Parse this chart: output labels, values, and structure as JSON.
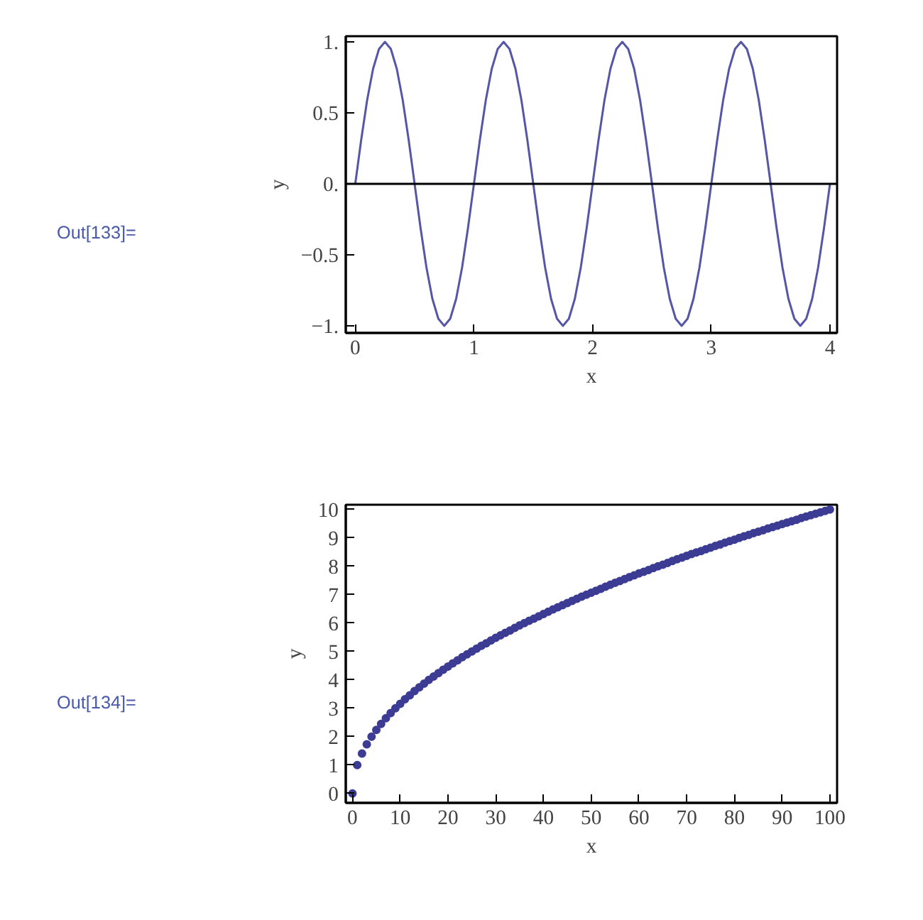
{
  "chart_data": [
    {
      "type": "line",
      "xlabel": "x",
      "ylabel": "y",
      "annotations": [
        "Out[133]="
      ],
      "x": [
        0,
        0.05,
        0.1,
        0.15,
        0.2,
        0.25,
        0.3,
        0.35,
        0.4,
        0.45,
        0.5,
        0.55,
        0.6,
        0.65,
        0.7,
        0.75,
        0.8,
        0.85,
        0.9,
        0.95,
        1,
        1.05,
        1.1,
        1.15,
        1.2,
        1.25,
        1.3,
        1.35,
        1.4,
        1.45,
        1.5,
        1.55,
        1.6,
        1.65,
        1.7,
        1.75,
        1.8,
        1.85,
        1.9,
        1.95,
        2,
        2.05,
        2.1,
        2.15,
        2.2,
        2.25,
        2.3,
        2.35,
        2.4,
        2.45,
        2.5,
        2.55,
        2.6,
        2.65,
        2.7,
        2.75,
        2.8,
        2.85,
        2.9,
        2.95,
        3,
        3.05,
        3.1,
        3.15,
        3.2,
        3.25,
        3.3,
        3.35,
        3.4,
        3.45,
        3.5,
        3.55,
        3.6,
        3.65,
        3.7,
        3.75,
        3.8,
        3.85,
        3.9,
        3.95,
        4
      ],
      "series": [
        {
          "color": "#5656a6",
          "values": [
            0,
            0.31,
            0.59,
            0.81,
            0.95,
            1,
            0.95,
            0.81,
            0.59,
            0.31,
            0,
            -0.31,
            -0.59,
            -0.81,
            -0.95,
            -1,
            -0.95,
            -0.81,
            -0.59,
            -0.31,
            0,
            0.31,
            0.59,
            0.81,
            0.95,
            1,
            0.95,
            0.81,
            0.59,
            0.31,
            0,
            -0.31,
            -0.59,
            -0.81,
            -0.95,
            -1,
            -0.95,
            -0.81,
            -0.59,
            -0.31,
            0,
            0.31,
            0.59,
            0.81,
            0.95,
            1,
            0.95,
            0.81,
            0.59,
            0.31,
            0,
            -0.31,
            -0.59,
            -0.81,
            -0.95,
            -1,
            -0.95,
            -0.81,
            -0.59,
            -0.31,
            0,
            0.31,
            0.59,
            0.81,
            0.95,
            1,
            0.95,
            0.81,
            0.59,
            0.31,
            0,
            -0.31,
            -0.59,
            -0.81,
            -0.95,
            -1,
            -0.95,
            -0.81,
            -0.59,
            -0.31,
            0
          ]
        }
      ],
      "xlim": [
        -0.08,
        4.06
      ],
      "ylim": [
        -1.05,
        1.04
      ],
      "xticks": [
        0,
        1,
        2,
        3,
        4
      ],
      "yticks": [
        {
          "value": -1,
          "label": "−1."
        },
        {
          "value": -0.5,
          "label": "−0.5"
        },
        {
          "value": 0,
          "label": "0."
        },
        0.5,
        {
          "value": 1,
          "label": "1."
        }
      ],
      "ref_lines": [
        {
          "axis": "y",
          "value": 0,
          "color": "#000000"
        }
      ],
      "grid": false
    },
    {
      "type": "scatter",
      "xlabel": "x",
      "ylabel": "y",
      "annotations": [
        "Out[134]="
      ],
      "marker": "circle",
      "x": [
        0,
        1,
        2,
        3,
        4,
        5,
        6,
        7,
        8,
        9,
        10,
        11,
        12,
        13,
        14,
        15,
        16,
        17,
        18,
        19,
        20,
        21,
        22,
        23,
        24,
        25,
        26,
        27,
        28,
        29,
        30,
        31,
        32,
        33,
        34,
        35,
        36,
        37,
        38,
        39,
        40,
        41,
        42,
        43,
        44,
        45,
        46,
        47,
        48,
        49,
        50,
        51,
        52,
        53,
        54,
        55,
        56,
        57,
        58,
        59,
        60,
        61,
        62,
        63,
        64,
        65,
        66,
        67,
        68,
        69,
        70,
        71,
        72,
        73,
        74,
        75,
        76,
        77,
        78,
        79,
        80,
        81,
        82,
        83,
        84,
        85,
        86,
        87,
        88,
        89,
        90,
        91,
        92,
        93,
        94,
        95,
        96,
        97,
        98,
        99,
        100
      ],
      "series": [
        {
          "color": "#3c3c94",
          "values": [
            0,
            1,
            1.41,
            1.73,
            2,
            2.24,
            2.45,
            2.65,
            2.83,
            3,
            3.16,
            3.32,
            3.46,
            3.61,
            3.74,
            3.87,
            4,
            4.12,
            4.24,
            4.36,
            4.47,
            4.58,
            4.69,
            4.8,
            4.9,
            5,
            5.1,
            5.2,
            5.29,
            5.39,
            5.48,
            5.57,
            5.66,
            5.74,
            5.83,
            5.92,
            6,
            6.08,
            6.16,
            6.24,
            6.32,
            6.4,
            6.48,
            6.56,
            6.63,
            6.71,
            6.78,
            6.86,
            6.93,
            7,
            7.07,
            7.14,
            7.21,
            7.28,
            7.35,
            7.42,
            7.48,
            7.55,
            7.62,
            7.68,
            7.75,
            7.81,
            7.87,
            7.94,
            8,
            8.06,
            8.12,
            8.19,
            8.25,
            8.31,
            8.37,
            8.43,
            8.49,
            8.54,
            8.6,
            8.66,
            8.72,
            8.77,
            8.83,
            8.89,
            8.94,
            9,
            9.06,
            9.11,
            9.17,
            9.22,
            9.27,
            9.33,
            9.38,
            9.43,
            9.49,
            9.54,
            9.59,
            9.64,
            9.7,
            9.75,
            9.8,
            9.85,
            9.9,
            9.95,
            10
          ]
        }
      ],
      "xlim": [
        -1.4,
        101.5
      ],
      "ylim": [
        -0.33,
        10.17
      ],
      "xticks": [
        0,
        10,
        20,
        30,
        40,
        50,
        60,
        70,
        80,
        90,
        100
      ],
      "yticks": [
        0,
        1,
        2,
        3,
        4,
        5,
        6,
        7,
        8,
        9,
        10
      ],
      "grid": false
    }
  ]
}
